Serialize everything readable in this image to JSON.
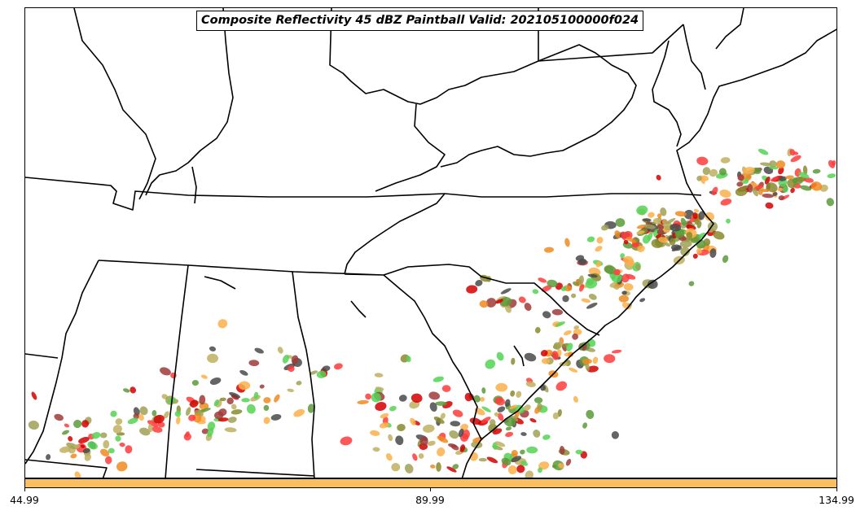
{
  "title": "Composite Reflectivity 45 dBZ Paintball Valid: 202105100000f024",
  "colorbar": {
    "color": "#fcbf5e",
    "tick_labels": [
      "44.99",
      "89.99",
      "134.99"
    ]
  },
  "map": {
    "region": "Southeastern United States",
    "paintball_colors": [
      "#ff3b3b",
      "#d40000",
      "#f08a1e",
      "#fcb04a",
      "#8a8a2e",
      "#a0a055",
      "#a03a3a",
      "#5a9a3a",
      "#55d455",
      "#4a4a4a",
      "#c0b060"
    ]
  }
}
